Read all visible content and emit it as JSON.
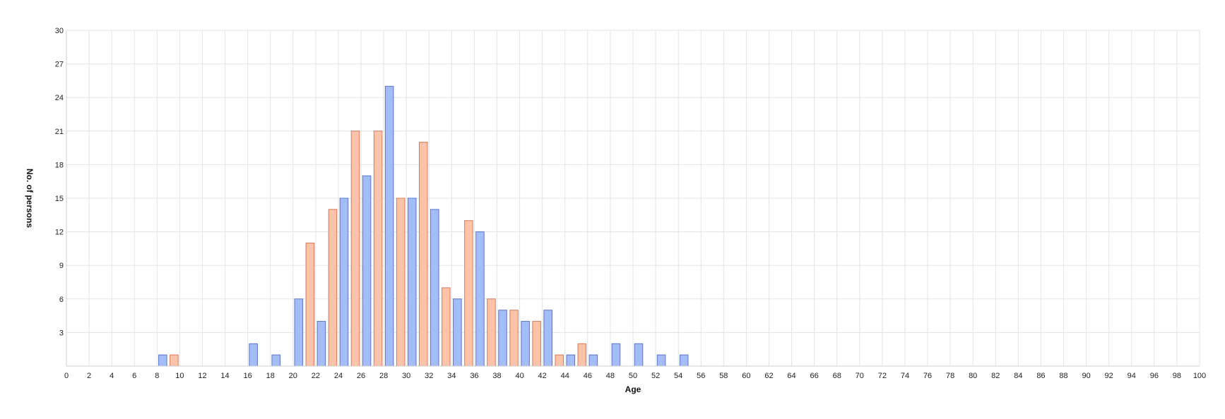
{
  "chart_data": {
    "type": "bar",
    "title": "",
    "xlabel": "Age",
    "ylabel": "No. of persons",
    "xlim": [
      0,
      100
    ],
    "ylim": [
      0,
      30
    ],
    "x_ticks": [
      0,
      2,
      4,
      6,
      8,
      10,
      12,
      14,
      16,
      18,
      20,
      22,
      24,
      26,
      28,
      30,
      32,
      34,
      36,
      38,
      40,
      42,
      44,
      46,
      48,
      50,
      52,
      54,
      56,
      58,
      60,
      62,
      64,
      66,
      68,
      70,
      72,
      74,
      76,
      78,
      80,
      82,
      84,
      86,
      88,
      90,
      92,
      94,
      96,
      98,
      100
    ],
    "y_ticks": [
      3,
      6,
      9,
      12,
      15,
      18,
      21,
      24,
      27,
      30
    ],
    "grid": true,
    "legend": "none",
    "series": [
      {
        "color": "#a4bdf7",
        "stroke": "#5577c8",
        "points": [
          {
            "x": 8.5,
            "y": 1
          },
          {
            "x": 16.5,
            "y": 2
          },
          {
            "x": 18.5,
            "y": 1
          },
          {
            "x": 20.5,
            "y": 6
          },
          {
            "x": 22.5,
            "y": 4
          },
          {
            "x": 24.5,
            "y": 15
          },
          {
            "x": 26.5,
            "y": 17
          },
          {
            "x": 28.5,
            "y": 25
          },
          {
            "x": 30.5,
            "y": 15
          },
          {
            "x": 32.5,
            "y": 14
          },
          {
            "x": 34.5,
            "y": 6
          },
          {
            "x": 36.5,
            "y": 12
          },
          {
            "x": 38.5,
            "y": 5
          },
          {
            "x": 40.5,
            "y": 4
          },
          {
            "x": 42.5,
            "y": 5
          },
          {
            "x": 44.5,
            "y": 1
          },
          {
            "x": 46.5,
            "y": 1
          },
          {
            "x": 48.5,
            "y": 2
          },
          {
            "x": 50.5,
            "y": 2
          },
          {
            "x": 52.5,
            "y": 1
          },
          {
            "x": 54.5,
            "y": 1
          }
        ]
      },
      {
        "color": "#fbc4aa",
        "stroke": "#d9785a",
        "points": [
          {
            "x": 9.5,
            "y": 1
          },
          {
            "x": 21.5,
            "y": 11
          },
          {
            "x": 23.5,
            "y": 14
          },
          {
            "x": 25.5,
            "y": 21
          },
          {
            "x": 27.5,
            "y": 21
          },
          {
            "x": 29.5,
            "y": 15
          },
          {
            "x": 31.5,
            "y": 20
          },
          {
            "x": 33.5,
            "y": 7
          },
          {
            "x": 35.5,
            "y": 13
          },
          {
            "x": 37.5,
            "y": 6
          },
          {
            "x": 39.5,
            "y": 5
          },
          {
            "x": 41.5,
            "y": 4
          },
          {
            "x": 43.5,
            "y": 1
          },
          {
            "x": 45.5,
            "y": 2
          }
        ]
      }
    ]
  }
}
